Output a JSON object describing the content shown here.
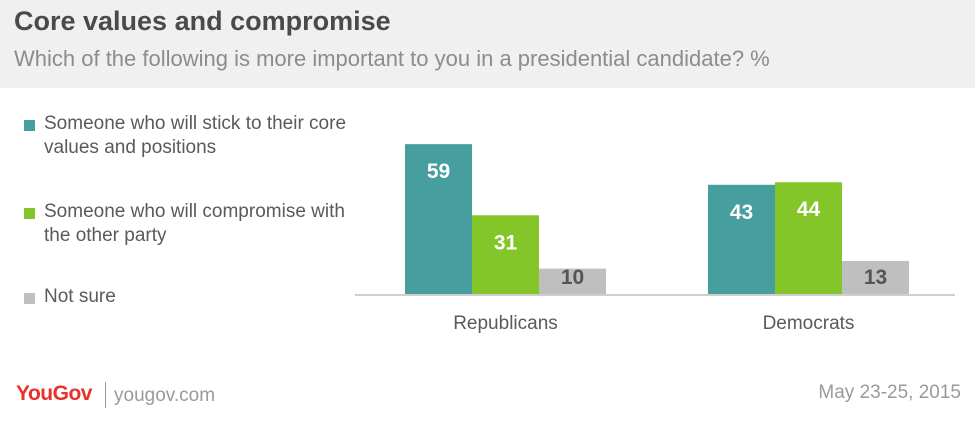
{
  "header": {
    "title": "Core values and compromise",
    "subtitle": "Which of the following is more important to you in a presidential candidate? %"
  },
  "legend": [
    {
      "label": "Someone who will stick to their core values and positions",
      "color": "#479e9f"
    },
    {
      "label": "Someone who will compromise with the other party",
      "color": "#84c52a"
    },
    {
      "label": "Not sure",
      "color": "#bfbfbf"
    }
  ],
  "chart_data": {
    "type": "bar",
    "title": "Core values and compromise",
    "subtitle": "Which of the following is more important to you in a presidential candidate? %",
    "categories": [
      "Republicans",
      "Democrats"
    ],
    "series": [
      {
        "name": "Someone who will stick to their core values and positions",
        "values": [
          59,
          43
        ],
        "color": "#479e9f"
      },
      {
        "name": "Someone who will compromise with the other party",
        "values": [
          31,
          44
        ],
        "color": "#84c52a"
      },
      {
        "name": "Not sure",
        "values": [
          10,
          13
        ],
        "color": "#bfbfbf"
      }
    ],
    "ylim": [
      0,
      60
    ],
    "grid": false,
    "legend_position": "left"
  },
  "footer": {
    "brand": "YouGov",
    "url": "yougov.com",
    "date": "May 23-25, 2015"
  }
}
